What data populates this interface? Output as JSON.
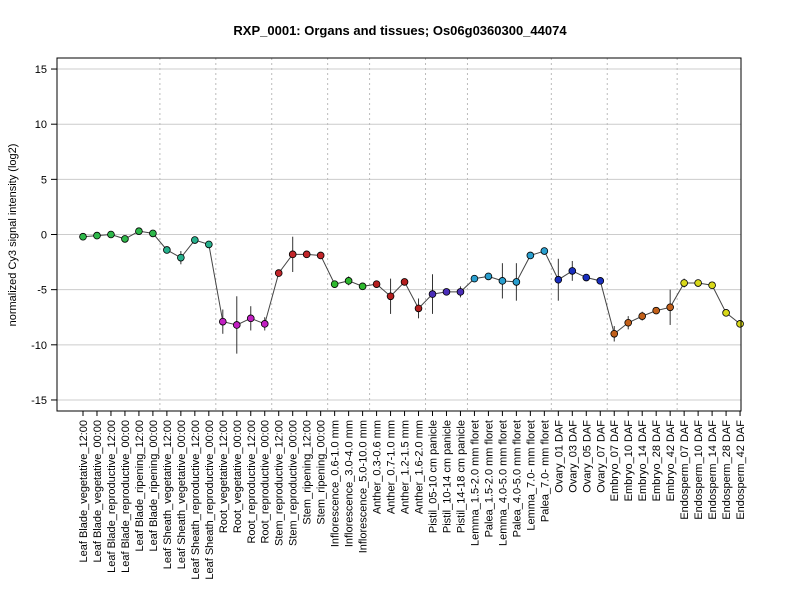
{
  "chart_data": {
    "type": "line",
    "title": "RXP_0001: Organs and tissues; Os06g0360300_44074",
    "ylabel": "normalized Cy3 signal intensity (log2)",
    "xlabel": "",
    "ylim": [
      -16,
      16
    ],
    "yticks": [
      -15,
      -10,
      -5,
      0,
      5,
      10,
      15
    ],
    "grid": true,
    "categories": [
      "Leaf Blade_vegetative_12:00",
      "Leaf Blade_vegetative_00:00",
      "Leaf Blade_reproductive_12:00",
      "Leaf Blade_reproductive_00:00",
      "Leaf Blade_ripening_12:00",
      "Leaf Blade_ripening_00:00",
      "Leaf Sheath_vegetative_12:00",
      "Leaf Sheath_vegetative_00:00",
      "Leaf Sheath_reproductive_12:00",
      "Leaf Sheath_reproductive_00:00",
      "Root_vegetative_12:00",
      "Root_vegetative_00:00",
      "Root_reproductive_12:00",
      "Root_reproductive_00:00",
      "Stem_reproductive_12:00",
      "Stem_reproductive_00:00",
      "Stem_ripening_12:00",
      "Stem_ripening_00:00",
      "Inflorescence_0.6-1.0 mm",
      "Inflorescence_3.0-4.0 mm",
      "Inflorescence_5.0-10.0 mm",
      "Anther_0.3-0.6 mm",
      "Anther_0.7-1.0 mm",
      "Anther_1.2-1.5 mm",
      "Anther_1.6-2.0 mm",
      "Pistil_05-10 cm panicle",
      "Pistil_10-14 cm panicle",
      "Pistil_14-18 cm panicle",
      "Lemma_1.5-2.0 mm floret",
      "Palea_1.5-2.0 mm floret",
      "Lemma_4.0-5.0 mm floret",
      "Palea_4.0-5.0 mm floret",
      "Lemma_7.0- mm floret",
      "Palea_7.0- mm floret",
      "Ovary_01 DAF",
      "Ovary_03 DAF",
      "Ovary_05 DAF",
      "Ovary_07 DAF",
      "Embryo_07 DAF",
      "Embryo_10 DAF",
      "Embryo_14 DAF",
      "Embryo_28 DAF",
      "Embryo_42 DAF",
      "Endosperm_07 DAF",
      "Endosperm_10 DAF",
      "Endosperm_14 DAF",
      "Endosperm_28 DAF",
      "Endosperm_42 DAF"
    ],
    "values": [
      -0.2,
      -0.1,
      0.0,
      -0.4,
      0.3,
      0.1,
      -1.4,
      -2.1,
      -0.5,
      -0.9,
      -7.9,
      -8.2,
      -7.6,
      -8.1,
      -3.5,
      -1.8,
      -1.8,
      -1.9,
      -4.5,
      -4.2,
      -4.7,
      -4.5,
      -5.6,
      -4.3,
      -6.7,
      -5.4,
      -5.2,
      -5.2,
      -4.0,
      -3.8,
      -4.2,
      -4.3,
      -1.9,
      -1.5,
      -4.1,
      -3.3,
      -3.9,
      -4.2,
      -9.0,
      -8.0,
      -7.4,
      -6.9,
      -6.6,
      -4.4,
      -4.4,
      -4.6,
      -7.1,
      -8.1
    ],
    "errors": [
      0.15,
      0.3,
      0.15,
      0.2,
      0.15,
      0.15,
      0.2,
      0.6,
      0.15,
      0.3,
      1.1,
      2.6,
      1.1,
      0.6,
      0.3,
      1.6,
      0.2,
      0.2,
      0.3,
      0.4,
      0.2,
      0.2,
      1.6,
      0.3,
      0.9,
      1.8,
      0.3,
      0.5,
      0.3,
      0.2,
      1.6,
      1.7,
      0.3,
      0.3,
      1.9,
      0.9,
      0.3,
      0.2,
      0.7,
      0.6,
      0.4,
      0.3,
      1.6,
      0.4,
      0.3,
      0.3,
      0.3,
      0.3
    ],
    "point_colors": [
      "#2eb84a",
      "#2eb84a",
      "#2eb84a",
      "#2eb84a",
      "#2eb84a",
      "#2eb84a",
      "#26b08c",
      "#26b08c",
      "#26b08c",
      "#26b08c",
      "#c21fc2",
      "#c21fc2",
      "#c21fc2",
      "#c21fc2",
      "#c2262a",
      "#c2262a",
      "#c2262a",
      "#c2262a",
      "#2eb82e",
      "#2eb82e",
      "#2eb82e",
      "#b51f1f",
      "#b51f1f",
      "#b51f1f",
      "#b51f1f",
      "#4a2db8",
      "#4a2db8",
      "#4a2db8",
      "#2a9fcf",
      "#2a9fcf",
      "#2a9fcf",
      "#2a9fcf",
      "#2a9fcf",
      "#2a9fcf",
      "#1a2fbf",
      "#1a2fbf",
      "#1a2fbf",
      "#1a2fbf",
      "#c2601a",
      "#c2601a",
      "#c2601a",
      "#c2601a",
      "#c2601a",
      "#d8d81a",
      "#d8d81a",
      "#d8d81a",
      "#d8d81a",
      "#d8d81a"
    ],
    "group_boundaries_after_index": [
      5,
      9,
      13,
      17,
      20,
      24,
      27,
      33,
      37,
      42
    ]
  }
}
